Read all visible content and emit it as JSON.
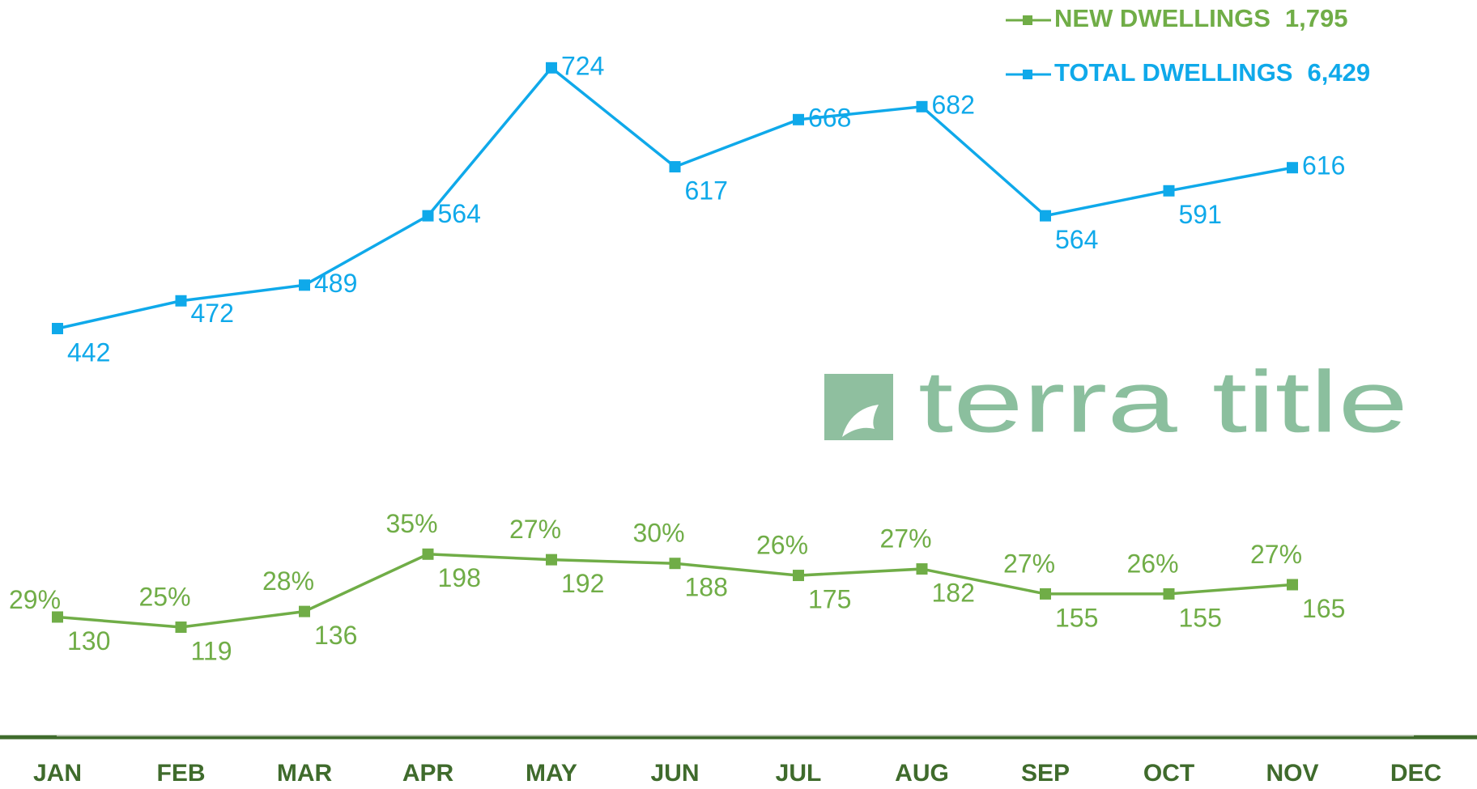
{
  "chart_data": {
    "type": "line",
    "categories": [
      "JAN",
      "FEB",
      "MAR",
      "APR",
      "MAY",
      "JUN",
      "JUL",
      "AUG",
      "SEP",
      "OCT",
      "NOV",
      "DEC"
    ],
    "series": [
      {
        "name": "NEW DWELLINGS",
        "total_label": "1,795",
        "color": "#70ad47",
        "values": [
          130,
          119,
          136,
          198,
          192,
          188,
          175,
          182,
          155,
          155,
          165,
          null
        ],
        "percent_labels": [
          "29%",
          "25%",
          "28%",
          "35%",
          "27%",
          "30%",
          "26%",
          "27%",
          "27%",
          "26%",
          "27%",
          null
        ]
      },
      {
        "name": "TOTAL DWELLINGS",
        "total_label": "6,429",
        "color": "#0fa9ea",
        "values": [
          442,
          472,
          489,
          564,
          724,
          617,
          668,
          682,
          564,
          591,
          616,
          null
        ]
      }
    ],
    "ylim": [
      0,
      800
    ],
    "logo_text": "terra title"
  }
}
